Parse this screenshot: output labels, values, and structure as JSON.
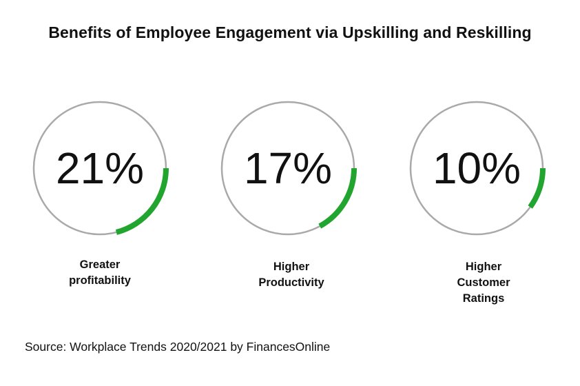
{
  "title": "Benefits of Employee Engagement via Upskilling and Reskilling",
  "source": "Source: Workplace Trends 2020/2021 by FinancesOnline",
  "colors": {
    "ring": "#a9a9a9",
    "progress": "#22a52f",
    "text": "#111111"
  },
  "chart_data": {
    "type": "gauge",
    "title": "Benefits of Employee Engagement via Upskilling and Reskilling",
    "items": [
      {
        "value": 21,
        "display": "21%",
        "label": "Greater\nprofitability"
      },
      {
        "value": 17,
        "display": "17%",
        "label": "Higher\nProductivity"
      },
      {
        "value": 10,
        "display": "10%",
        "label": "Higher\nCustomer\nRatings"
      }
    ]
  }
}
